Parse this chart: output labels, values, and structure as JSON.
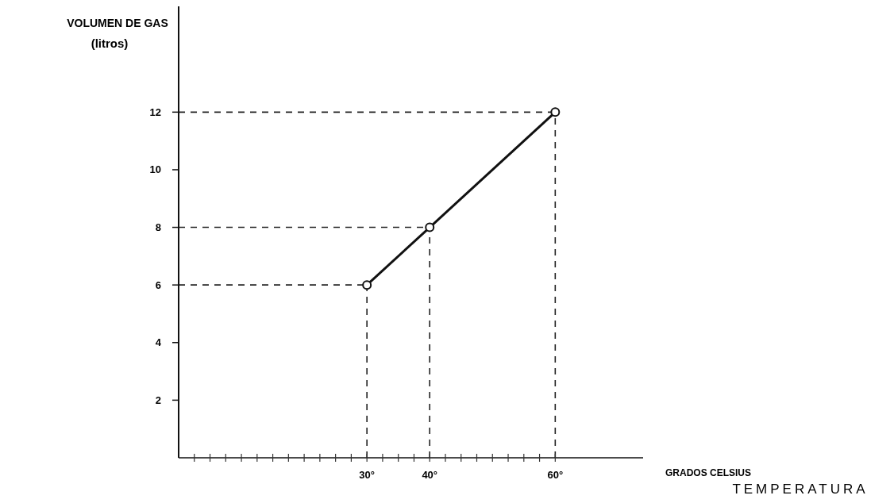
{
  "chart_data": {
    "type": "line",
    "ylabel": "VOLUMEN DE GAS (litros)",
    "xlabel": "GRADOS CELSIUS",
    "annotations": [
      "TEMPERATURA"
    ],
    "x": [
      30,
      40,
      60
    ],
    "series": [
      {
        "color": "#111111",
        "values": [
          6,
          8,
          12
        ]
      }
    ],
    "marker": "circle",
    "line_style": "solid",
    "grid": false,
    "xlim": [
      0,
      74
    ],
    "ylim": [
      0,
      15.7
    ],
    "xticks": [
      {
        "value": 2.5,
        "label": null
      },
      {
        "value": 5,
        "label": null
      },
      {
        "value": 7.5,
        "label": null
      },
      {
        "value": 10,
        "label": null
      },
      {
        "value": 12.5,
        "label": null
      },
      {
        "value": 15,
        "label": null
      },
      {
        "value": 17.5,
        "label": null
      },
      {
        "value": 20,
        "label": null
      },
      {
        "value": 22.5,
        "label": null
      },
      {
        "value": 25,
        "label": null
      },
      {
        "value": 27.5,
        "label": null
      },
      {
        "value": 30,
        "label": "30°"
      },
      {
        "value": 32.5,
        "label": null
      },
      {
        "value": 35,
        "label": null
      },
      {
        "value": 37.5,
        "label": null
      },
      {
        "value": 40,
        "label": "40°"
      },
      {
        "value": 42.5,
        "label": null
      },
      {
        "value": 45,
        "label": null
      },
      {
        "value": 47.5,
        "label": null
      },
      {
        "value": 50,
        "label": null
      },
      {
        "value": 52.5,
        "label": null
      },
      {
        "value": 55,
        "label": null
      },
      {
        "value": 57.5,
        "label": null
      },
      {
        "value": 60,
        "label": "60°"
      }
    ],
    "yticks": [
      2,
      4,
      6,
      8,
      10,
      12
    ],
    "ref_lines": [
      {
        "axis": "y",
        "value": 6,
        "line_style": "dashed"
      },
      {
        "axis": "y",
        "value": 8,
        "line_style": "dashed"
      },
      {
        "axis": "y",
        "value": 12,
        "line_style": "dashed"
      },
      {
        "axis": "x",
        "value": 30,
        "line_style": "dashed"
      },
      {
        "axis": "x",
        "value": 40,
        "line_style": "dashed"
      },
      {
        "axis": "x",
        "value": 60,
        "line_style": "dashed"
      }
    ]
  }
}
